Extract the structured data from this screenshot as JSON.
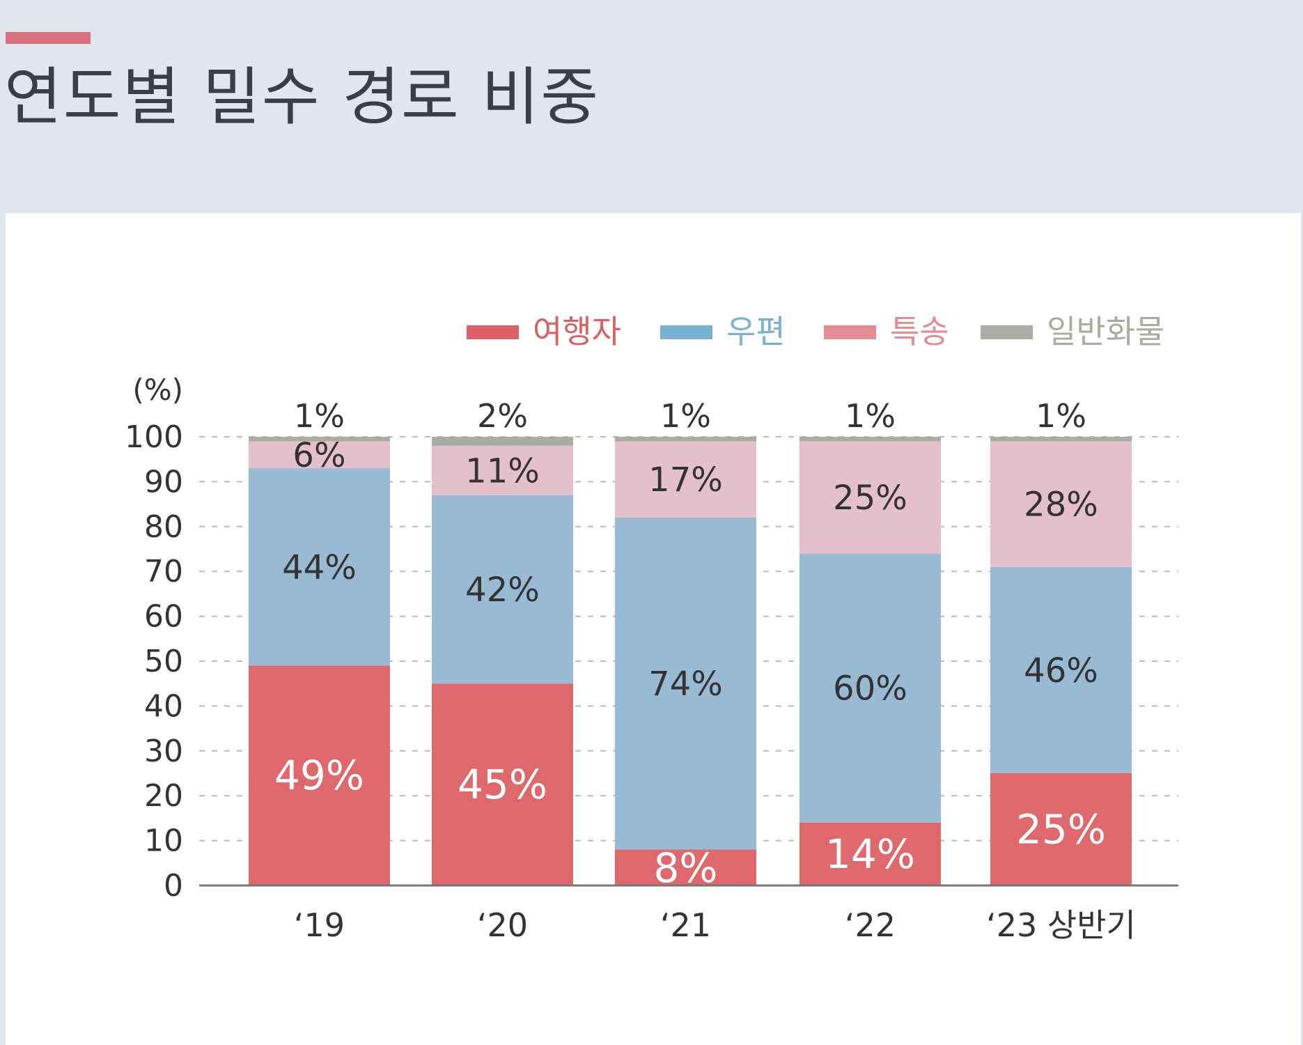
{
  "page": {
    "title": "연도별 밀수 경로 비중"
  },
  "colors": {
    "accent": "#d9707b",
    "header_bg": "#e1e6ee"
  },
  "chart_data": {
    "type": "bar",
    "stacked": true,
    "title": "연도별 밀수 경로 비중",
    "ylabel": "(%)",
    "xlabel": "",
    "ylim": [
      0,
      100
    ],
    "yticks": [
      0,
      10,
      20,
      30,
      40,
      50,
      60,
      70,
      80,
      90,
      100
    ],
    "grid": "horizontal dashed",
    "legend_position": "top-right",
    "categories": [
      "‘19",
      "‘20",
      "‘21",
      "‘22",
      "‘23 상반기"
    ],
    "series": [
      {
        "name": "여행자",
        "values": [
          49,
          45,
          8,
          14,
          25
        ],
        "labels": [
          "49%",
          "45%",
          "8%",
          "14%",
          "25%"
        ],
        "color": "#df686c",
        "legend_color": "#dd5f66",
        "label_color": "#ffffff"
      },
      {
        "name": "우편",
        "values": [
          44,
          42,
          74,
          60,
          46
        ],
        "labels": [
          "44%",
          "42%",
          "74%",
          "60%",
          "46%"
        ],
        "color": "#98bad3",
        "legend_color": "#79b1d1",
        "label_color": "#333333"
      },
      {
        "name": "특송",
        "values": [
          6,
          11,
          17,
          25,
          28
        ],
        "labels": [
          "6%",
          "11%",
          "17%",
          "25%",
          "28%"
        ],
        "color": "#e4c0cd",
        "legend_color": "#e58b94",
        "label_color": "#333333"
      },
      {
        "name": "일반화물",
        "values": [
          1,
          2,
          1,
          1,
          1
        ],
        "labels": [
          "1%",
          "2%",
          "1%",
          "1%",
          "1%"
        ],
        "color": "#aaaca3",
        "legend_color": "#aaaca3",
        "label_color": "#333333"
      }
    ]
  }
}
